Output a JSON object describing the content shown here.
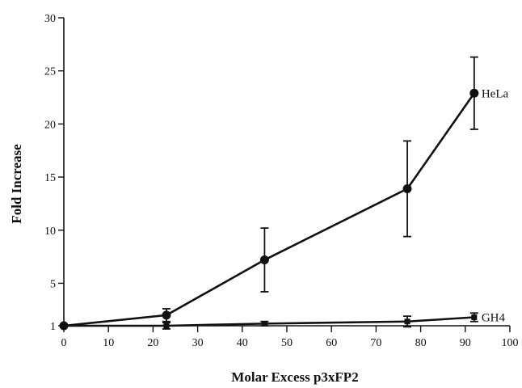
{
  "chart_data": {
    "type": "line",
    "title": "",
    "xlabel": "Molar Excess p3xFP2",
    "ylabel": "Fold Increase",
    "xlim": [
      0,
      100
    ],
    "ylim": [
      1,
      30
    ],
    "x_ticks": [
      0,
      10,
      20,
      30,
      40,
      50,
      60,
      70,
      80,
      90,
      100
    ],
    "y_ticks": [
      1,
      5,
      10,
      15,
      20,
      25,
      30
    ],
    "grid": false,
    "legend": "none",
    "series": [
      {
        "name": "HeLa",
        "marker": "circle",
        "x": [
          0,
          23,
          45,
          77,
          92
        ],
        "y": [
          1.0,
          2.0,
          7.2,
          13.9,
          22.9
        ],
        "err": [
          0,
          0.6,
          3.0,
          4.5,
          3.4
        ]
      },
      {
        "name": "GH4",
        "marker": "square",
        "x": [
          0,
          23,
          45,
          77,
          92
        ],
        "y": [
          1.0,
          1.0,
          1.2,
          1.4,
          1.8
        ],
        "err": [
          0,
          0.3,
          0.2,
          0.5,
          0.4
        ]
      }
    ]
  }
}
